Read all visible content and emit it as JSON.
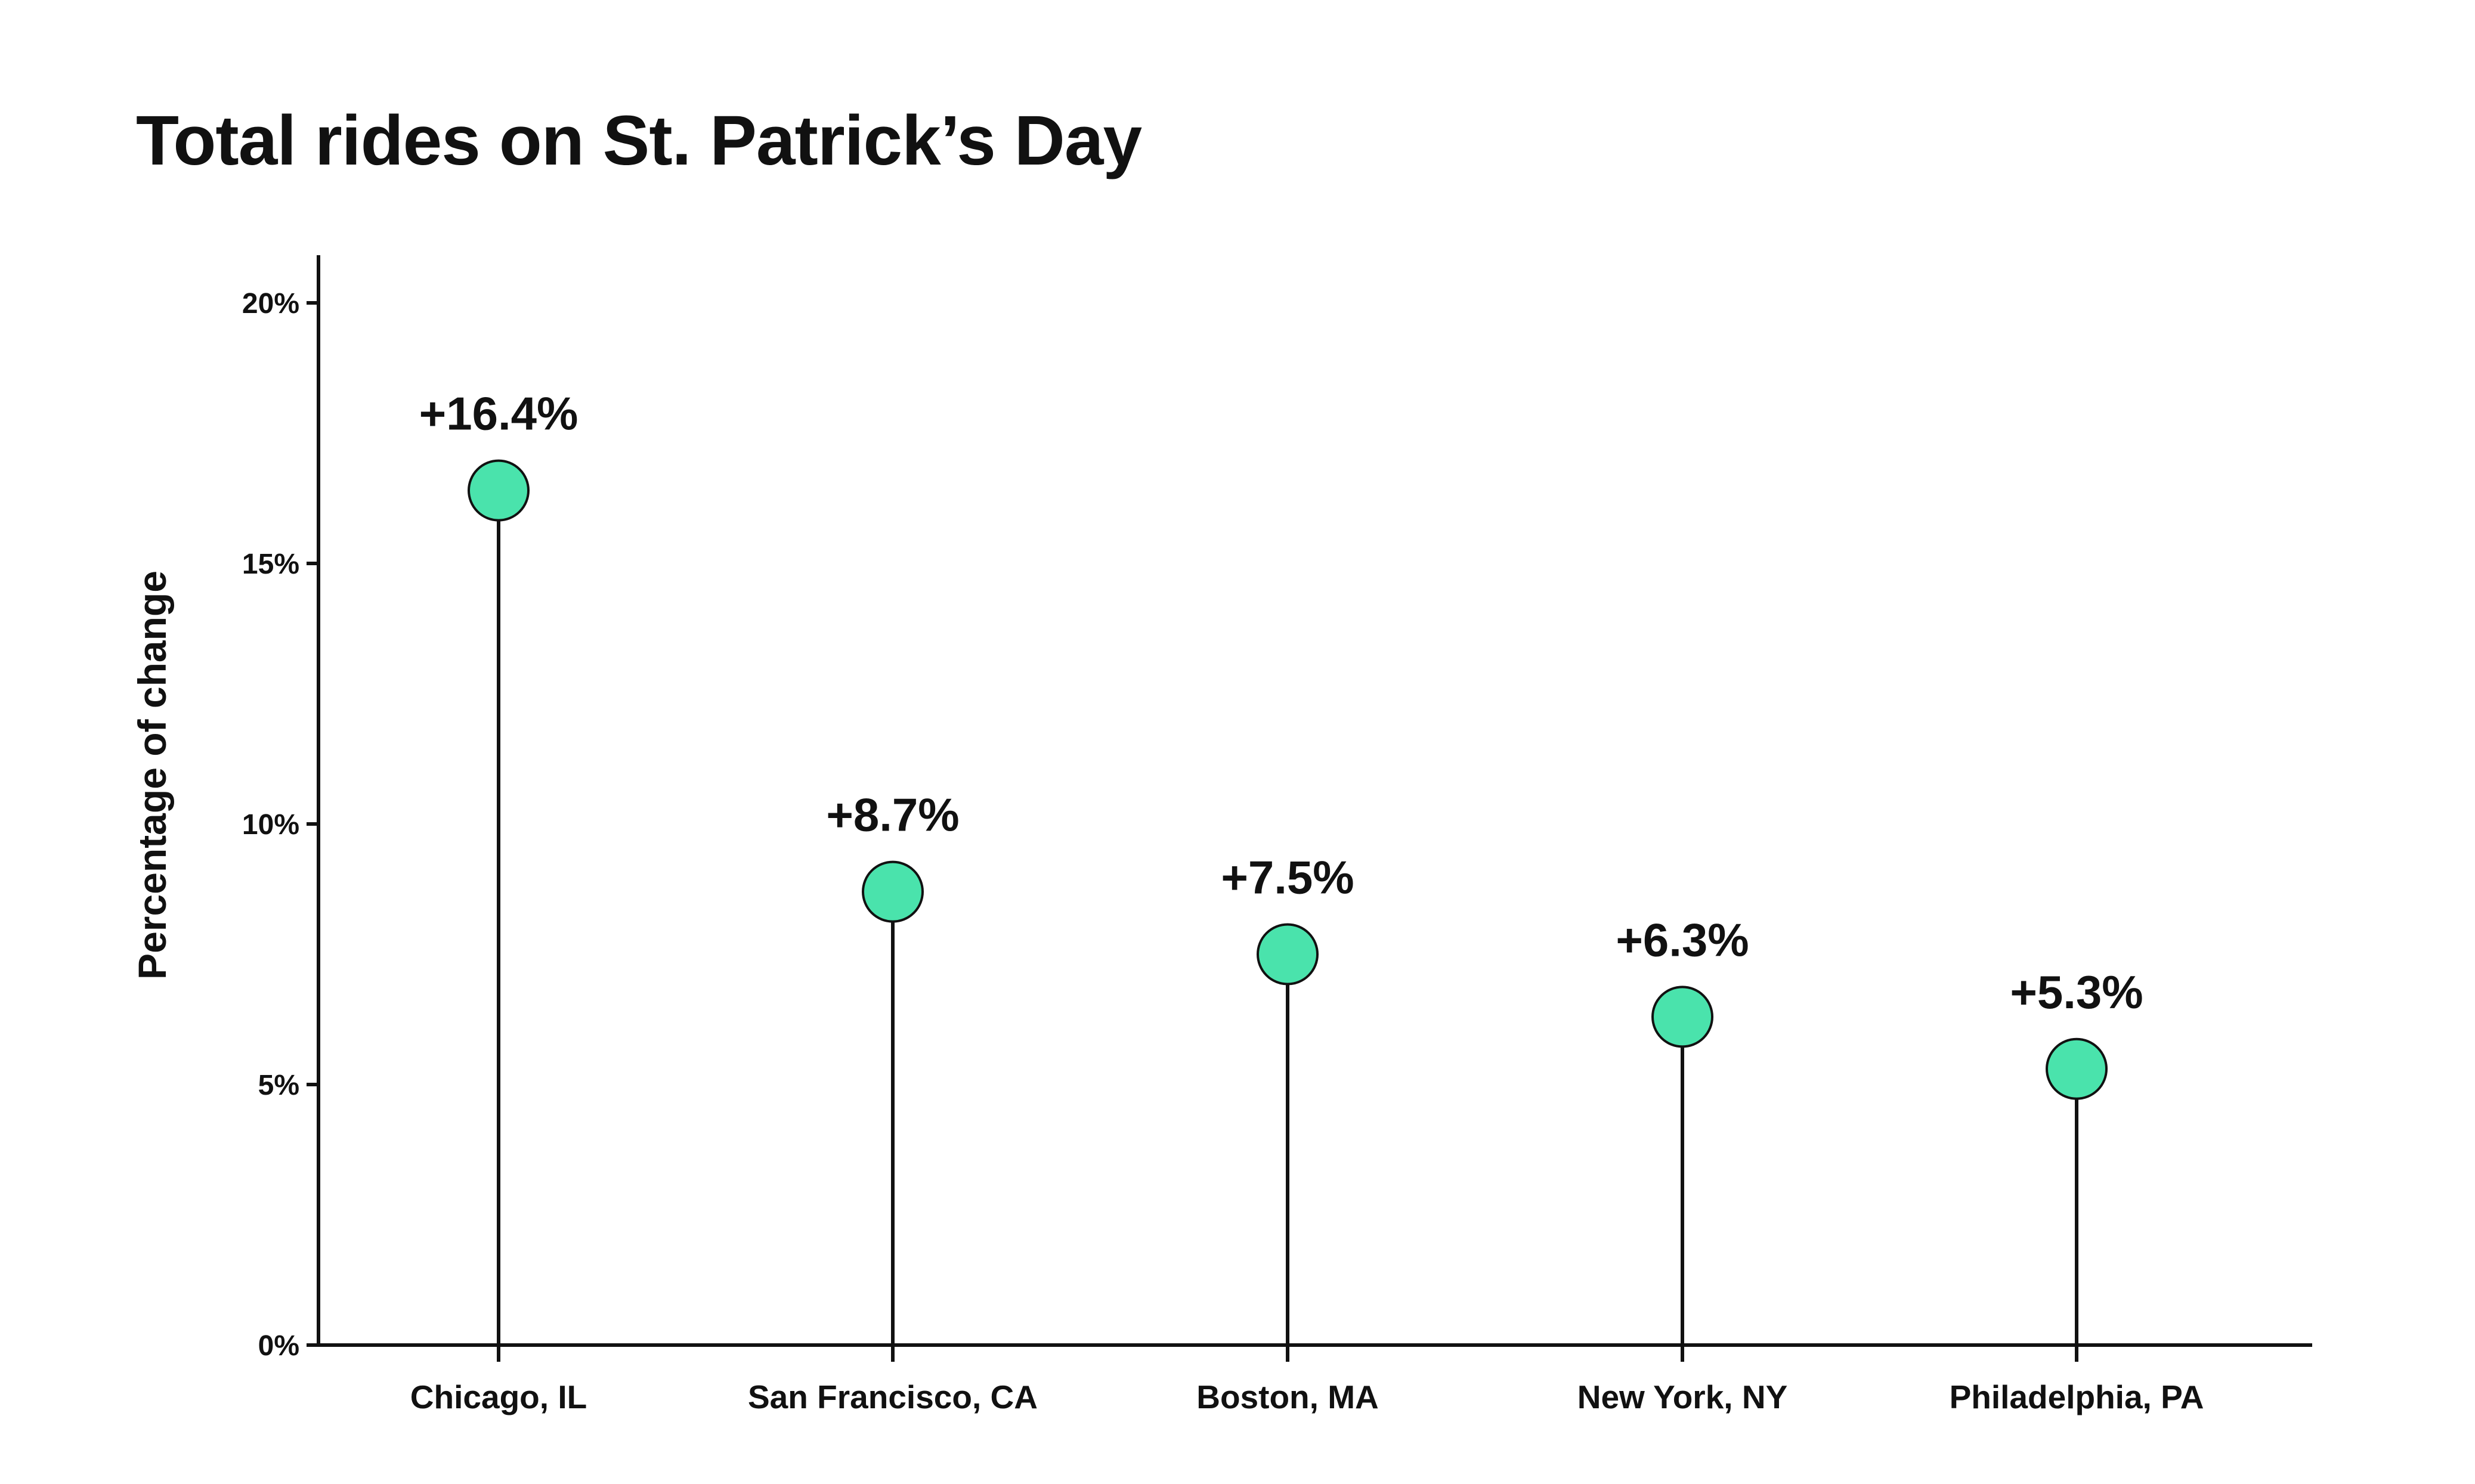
{
  "chart_data": {
    "type": "lollipop",
    "title": "Total rides on St. Patrick’s Day",
    "xlabel": "",
    "ylabel": "Percentage of change",
    "categories": [
      "Chicago, IL",
      "San Francisco, CA",
      "Boston, MA",
      "New York, NY",
      "Philadelphia, PA"
    ],
    "values": [
      16.4,
      8.7,
      7.5,
      6.3,
      5.3
    ],
    "data_labels": [
      "+16.4%",
      "+8.7%",
      "+7.5%",
      "+6.3%",
      "+5.3%"
    ],
    "ylim": [
      0,
      20
    ],
    "yticks": [
      0,
      5,
      10,
      15,
      20
    ],
    "ytick_labels": [
      "0%",
      "5%",
      "10%",
      "15%",
      "20%"
    ],
    "grid": false,
    "legend": "none",
    "colors": {
      "marker_fill": "#4ae3ac",
      "stroke": "#111111"
    }
  }
}
